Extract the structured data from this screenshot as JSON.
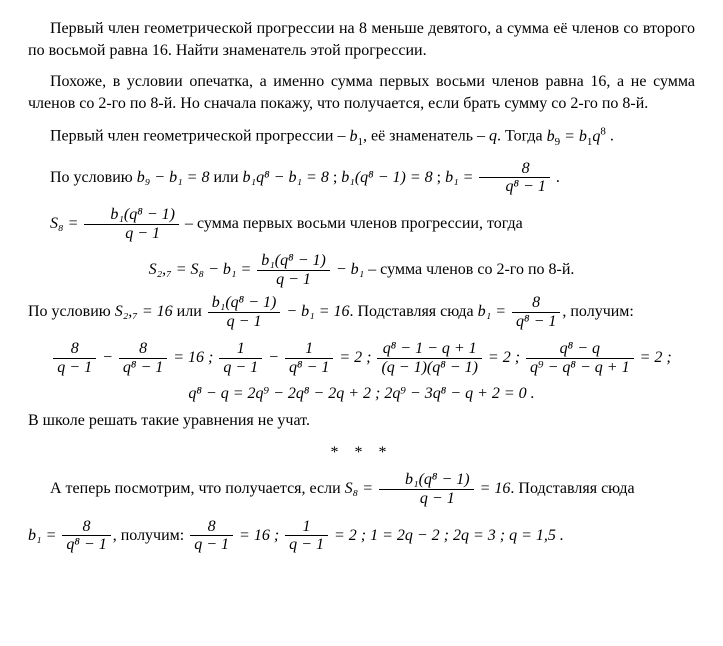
{
  "problem": {
    "p1": "Первый член геометрической прогрессии на 8 меньше девятого, а сумма её членов со второго по восьмой равна 16. Найти знаменатель этой прогрессии."
  },
  "comment": {
    "p1": "Похоже, в условии опечатка, а именно сумма первых восьми членов равна 16, а не сумма членов со 2-го по 8-й. Но сначала покажу, что получается, если брать сумму со 2-го по 8-й."
  },
  "line1": {
    "prefix": "Первый член геометрической прогрессии – ",
    "b1": "b",
    "b1sub": "1",
    "mid": ", её знаменатель – ",
    "q": "q",
    "dot": ". Тогда ",
    "eq_lhs": "b",
    "eq_lhs_sub": "9",
    "eq_eq": " = ",
    "eq_r1": "b",
    "eq_r1_sub": "1",
    "eq_r2": "q",
    "eq_r2_sup": "8",
    "tail": " ."
  },
  "line2": {
    "prefix": "По условию ",
    "c1": "b₉ − b₁ = 8",
    "or1": " или ",
    "c2": "b₁q⁸ − b₁ = 8",
    "sep1": " ; ",
    "c3": "b₁(q⁸ − 1) = 8",
    "sep2": " ; ",
    "b1eq": "b₁ = ",
    "frac_num": "8",
    "frac_den": "q⁸ − 1",
    "tail": " ."
  },
  "line3": {
    "s8": "S₈ = ",
    "num": "b₁(q⁸ − 1)",
    "den": "q − 1",
    "tail": " – сумма первых восьми членов прогрессии, тогда"
  },
  "line4": {
    "s27": "S₂,₇ = S₈ − b₁ = ",
    "num": "b₁(q⁸ − 1)",
    "den": "q − 1",
    "minus": " − b₁",
    "tail": " – сумма членов со 2-го по 8-й."
  },
  "line5": {
    "prefix": "По условию ",
    "s27": "S₂,₇ = 16",
    "or": " или ",
    "num": "b₁(q⁸ − 1)",
    "den": "q − 1",
    "rest": " − b₁ = 16",
    "dot": ". Подставляя сюда ",
    "b1": "b₁ = ",
    "num2": "8",
    "den2": "q⁸ − 1",
    "tail": ", получим:"
  },
  "chain1": {
    "f1n": "8",
    "f1d": "q − 1",
    "minus": " − ",
    "f2n": "8",
    "f2d": "q⁸ − 1",
    "eq16": " = 16 ; ",
    "f3n": "1",
    "f3d": "q − 1",
    "minus2": " − ",
    "f4n": "1",
    "f4d": "q⁸ − 1",
    "eq2a": " = 2 ; ",
    "f5n": "q⁸ − 1 − q + 1",
    "f5d": "(q − 1)(q⁸ − 1)",
    "eq2b": " = 2 ; ",
    "f6n": "q⁸ − q",
    "f6d": "q⁹ − q⁸ − q + 1",
    "eq2c": " = 2 ;"
  },
  "chain2": {
    "p1": "q⁸ − q = 2q⁹ − 2q⁸ − 2q + 2 ; ",
    "p2": "2q⁹ − 3q⁸ − q + 2 = 0 ."
  },
  "note": {
    "text": "В школе решать такие уравнения не учат."
  },
  "sep": "* * *",
  "alt1": {
    "prefix": "А теперь посмотрим, что получается, если ",
    "s8": "S₈ = ",
    "num": "b₁(q⁸ − 1)",
    "den": "q − 1",
    "eq16": " = 16",
    "tail": ". Подставляя сюда"
  },
  "alt2": {
    "b1": "b₁ = ",
    "num1": "8",
    "den1": "q⁸ − 1",
    "mid": ", получим: ",
    "num2": "8",
    "den2": "q − 1",
    "eq16": " = 16 ; ",
    "num3": "1",
    "den3": "q − 1",
    "eq2": " = 2 ; ",
    "s1": "1 = 2q − 2 ; ",
    "s2": "2q = 3 ; ",
    "s3": "q = 1,5 ."
  }
}
